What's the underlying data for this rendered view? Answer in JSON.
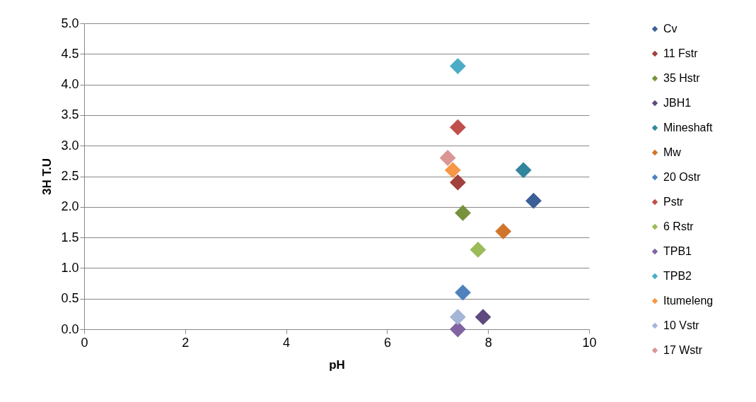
{
  "chart_data": {
    "type": "scatter",
    "xlabel": "pH",
    "ylabel": "3H T.U",
    "xlim": [
      0,
      10
    ],
    "xticks": [
      0,
      2,
      4,
      6,
      8,
      10
    ],
    "ylim": [
      0,
      5
    ],
    "yticks": [
      {
        "value": 0,
        "label": "0.0"
      },
      {
        "value": 0.5,
        "label": "0.5"
      },
      {
        "value": 1,
        "label": "1.0"
      },
      {
        "value": 1.5,
        "label": "1.5"
      },
      {
        "value": 2,
        "label": "2.0"
      },
      {
        "value": 2.5,
        "label": "2.5"
      },
      {
        "value": 3,
        "label": "3.0"
      },
      {
        "value": 3.5,
        "label": "3.5"
      },
      {
        "value": 4,
        "label": "4.0"
      },
      {
        "value": 4.5,
        "label": "4.5"
      },
      {
        "value": 5,
        "label": "5.0"
      }
    ],
    "grid": "y",
    "legend": "right",
    "marker": "diamond",
    "series": [
      {
        "name": "Cv",
        "color": "#3b5f96",
        "x": [
          8.9
        ],
        "values": [
          2.1
        ]
      },
      {
        "name": "11 Fstr",
        "color": "#a0413e",
        "x": [
          7.4
        ],
        "values": [
          2.4
        ]
      },
      {
        "name": "35 Hstr",
        "color": "#77923c",
        "x": [
          7.5
        ],
        "values": [
          1.9
        ]
      },
      {
        "name": "JBH1",
        "color": "#5e4a7e",
        "x": [
          7.9
        ],
        "values": [
          0.2
        ]
      },
      {
        "name": "Mineshaft",
        "color": "#31859c",
        "x": [
          8.7
        ],
        "values": [
          2.6
        ]
      },
      {
        "name": "Mw",
        "color": "#d0762c",
        "x": [
          8.3
        ],
        "values": [
          1.6
        ]
      },
      {
        "name": "20 Ostr",
        "color": "#4f81bd",
        "x": [
          7.5
        ],
        "values": [
          0.6
        ]
      },
      {
        "name": "Pstr",
        "color": "#c0504d",
        "x": [
          7.4
        ],
        "values": [
          3.3
        ]
      },
      {
        "name": "6 Rstr",
        "color": "#9bbb59",
        "x": [
          7.8
        ],
        "values": [
          1.3
        ]
      },
      {
        "name": "TPB1",
        "color": "#8064a2",
        "x": [
          7.4
        ],
        "values": [
          0
        ]
      },
      {
        "name": "TPB2",
        "color": "#4bacc6",
        "x": [
          7.4
        ],
        "values": [
          4.3
        ]
      },
      {
        "name": "Itumeleng",
        "color": "#f79646",
        "x": [
          7.3
        ],
        "values": [
          2.6
        ]
      },
      {
        "name": "10 Vstr",
        "color": "#a5b5d8",
        "x": [
          7.4
        ],
        "values": [
          0.2
        ]
      },
      {
        "name": "17 Wstr",
        "color": "#d99694",
        "x": [
          7.2
        ],
        "values": [
          2.8
        ]
      }
    ]
  }
}
